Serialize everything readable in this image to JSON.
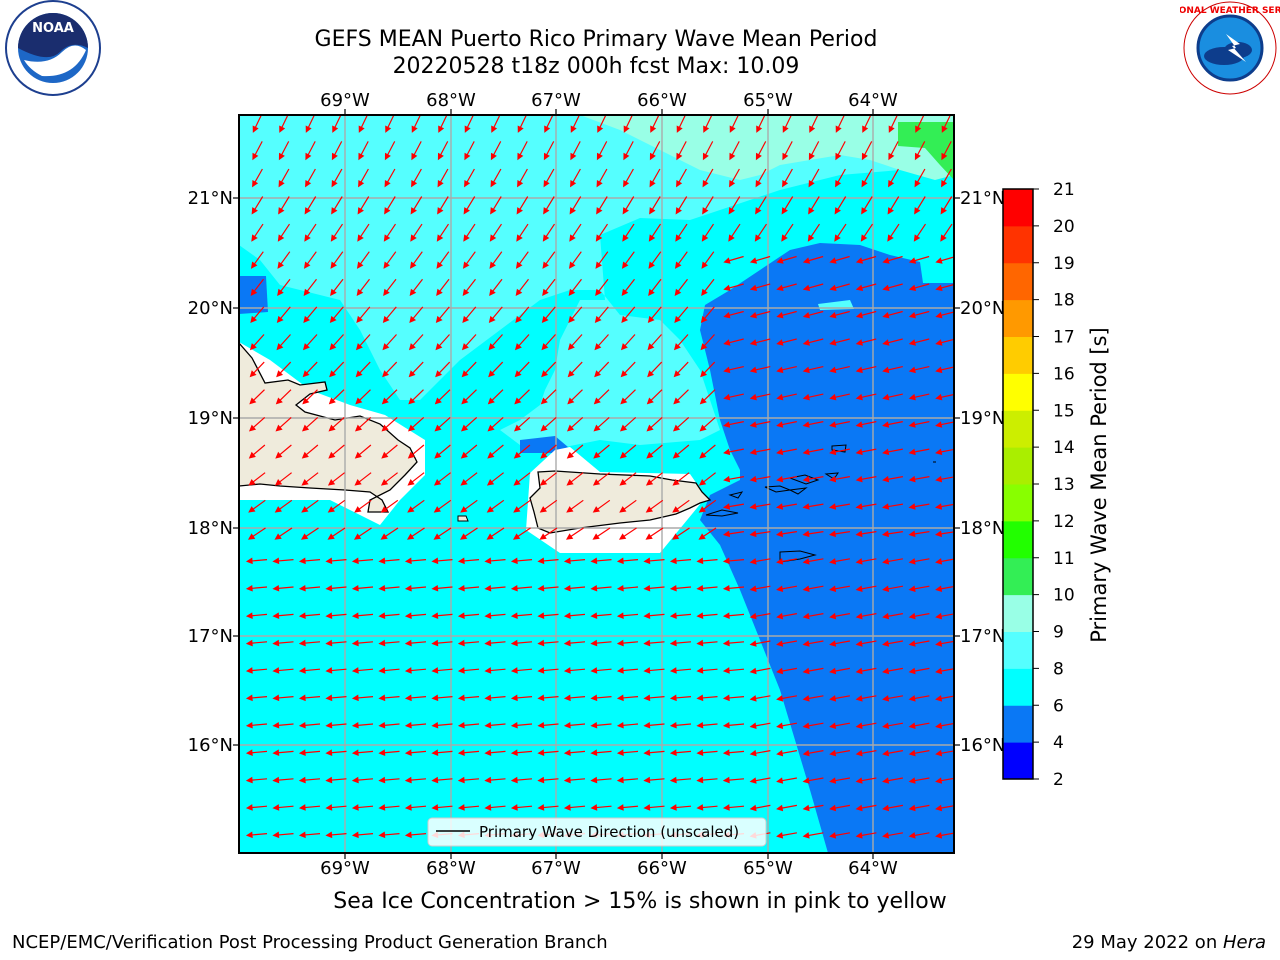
{
  "header": {
    "title_line1": "GEFS MEAN Puerto Rico Primary Wave Mean Period",
    "title_line2": "20220528 t18z 000h fcst   Max: 10.09"
  },
  "map": {
    "lon_labels": [
      "69°W",
      "68°W",
      "67°W",
      "66°W",
      "65°W",
      "64°W"
    ],
    "lat_labels": [
      "21°N",
      "20°N",
      "19°N",
      "18°N",
      "17°N",
      "16°N"
    ],
    "legend_label": "Primary Wave Direction (unscaled)",
    "arrow_color": "#ff0000",
    "land_color": "#efebdc"
  },
  "colorbar": {
    "label": "Primary Wave Mean Period [s]",
    "ticks": [
      "2",
      "4",
      "6",
      "8",
      "9",
      "10",
      "11",
      "12",
      "13",
      "14",
      "15",
      "16",
      "17",
      "18",
      "19",
      "20",
      "21"
    ],
    "colors": [
      "#0000ff",
      "#0a78f5",
      "#00ffff",
      "#55ffff",
      "#99ffe6",
      "#33ee55",
      "#22ff00",
      "#88ff00",
      "#aaee00",
      "#ccee00",
      "#ffff00",
      "#ffcc00",
      "#ff9900",
      "#ff6600",
      "#ff3300",
      "#ff0000"
    ]
  },
  "note": "Sea Ice Concentration > 15% is shown in pink to yellow",
  "footer": {
    "left": "NCEP/EMC/Verification Post Processing Product Generation Branch",
    "right_date": "29 May 2022 on ",
    "right_host": "Hera"
  },
  "logos": {
    "noaa_text": "NOAA",
    "nws_text": "NATIONAL WEATHER SERVICE"
  }
}
